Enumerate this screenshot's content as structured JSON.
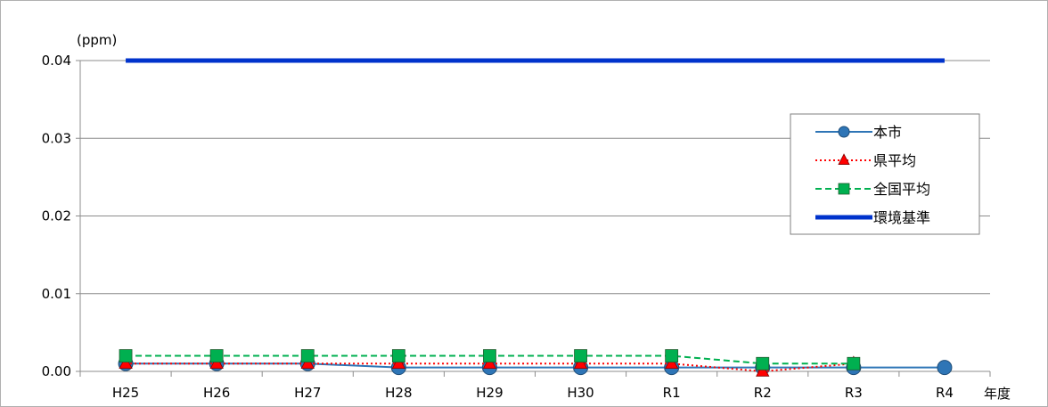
{
  "chart_data": {
    "type": "line",
    "unit_label": "(ppm)",
    "xlabel": "年度",
    "categories": [
      "H25",
      "H26",
      "H27",
      "H28",
      "H29",
      "H30",
      "R1",
      "R2",
      "R3",
      "R4"
    ],
    "ylim": [
      0,
      0.04
    ],
    "yticks": [
      "0.00",
      "0.01",
      "0.02",
      "0.03",
      "0.04"
    ],
    "grid": true,
    "legend_position": "right",
    "series": [
      {
        "name": "本市",
        "marker": "circle",
        "line": "solid",
        "color": "#2E75B6",
        "marker_color": "#2E75B6",
        "values": [
          0.001,
          0.001,
          0.001,
          0.0005,
          0.0005,
          0.0005,
          0.0005,
          0.0005,
          0.0005,
          0.0005
        ]
      },
      {
        "name": "県平均",
        "marker": "triangle",
        "line": "dotted",
        "color": "#FF0000",
        "marker_color": "#FF0000",
        "values": [
          0.001,
          0.001,
          0.001,
          0.001,
          0.001,
          0.001,
          0.001,
          0.0,
          0.001,
          null
        ]
      },
      {
        "name": "全国平均",
        "marker": "square",
        "line": "dashed",
        "color": "#00B050",
        "marker_color": "#00B050",
        "values": [
          0.002,
          0.002,
          0.002,
          0.002,
          0.002,
          0.002,
          0.002,
          0.001,
          0.001,
          null
        ]
      },
      {
        "name": "環境基準",
        "marker": "none",
        "line": "thick",
        "color": "#0033CC",
        "marker_color": "#0033CC",
        "values": [
          0.04,
          0.04,
          0.04,
          0.04,
          0.04,
          0.04,
          0.04,
          0.04,
          0.04,
          0.04
        ]
      }
    ]
  }
}
